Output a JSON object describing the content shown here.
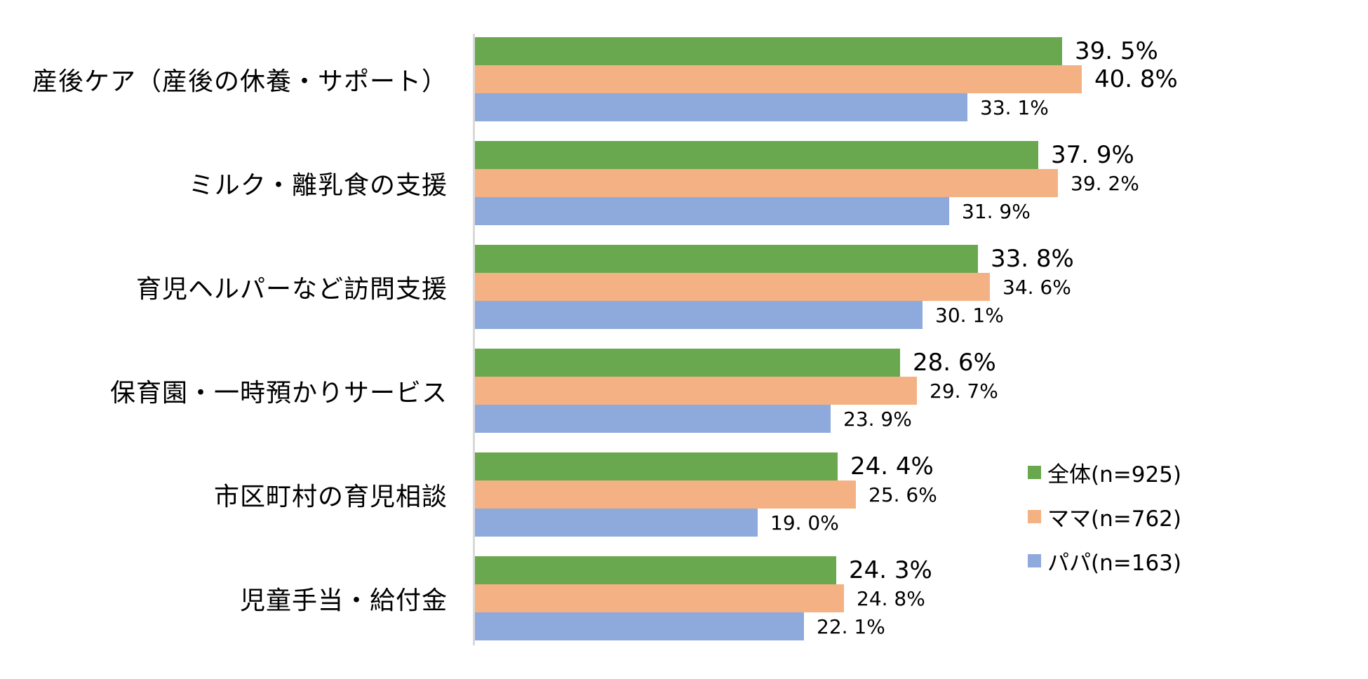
{
  "chart_data": {
    "type": "bar",
    "orientation": "horizontal",
    "title": "",
    "xlabel": "",
    "ylabel": "",
    "xlim": [
      0,
      60
    ],
    "grid": false,
    "legend_position": "right-lower",
    "categories": [
      "産後ケア（産後の休養・サポート）",
      "ミルク・離乳食の支援",
      "育児ヘルパーなど訪問支援",
      "保育園・一時預かりサービス",
      "市区町村の育児相談",
      "児童手当・給付金"
    ],
    "series": [
      {
        "name": "全体(n=925)",
        "color": "#6AA84F",
        "values": [
          39.5,
          37.9,
          33.8,
          28.6,
          24.4,
          24.3
        ]
      },
      {
        "name": "ママ(n=762)",
        "color": "#F4B183",
        "values": [
          40.8,
          39.2,
          34.6,
          29.7,
          25.6,
          24.8
        ]
      },
      {
        "name": "パパ(n=163)",
        "color": "#8EA9DB",
        "values": [
          33.1,
          31.9,
          30.1,
          23.9,
          19.0,
          22.1
        ]
      }
    ],
    "value_labels": [
      [
        "39. 5%",
        "40. 8%",
        "33. 1%"
      ],
      [
        "37. 9%",
        "39. 2%",
        "31. 9%"
      ],
      [
        "33. 8%",
        "34. 6%",
        "30. 1%"
      ],
      [
        "28. 6%",
        "29. 7%",
        "23. 9%"
      ],
      [
        "24. 4%",
        "25. 6%",
        "19. 0%"
      ],
      [
        "24. 3%",
        "24. 8%",
        "22. 1%"
      ]
    ],
    "label_emphasis": [
      [
        true,
        true,
        false
      ],
      [
        true,
        false,
        false
      ],
      [
        true,
        false,
        false
      ],
      [
        true,
        false,
        false
      ],
      [
        true,
        false,
        false
      ],
      [
        true,
        false,
        false
      ]
    ]
  },
  "legend": {
    "items": [
      {
        "label": "全体(n=925)",
        "color": "#6AA84F"
      },
      {
        "label": "ママ(n=762)",
        "color": "#F4B183"
      },
      {
        "label": "パパ(n=163)",
        "color": "#8EA9DB"
      }
    ]
  },
  "colors": {
    "axis_line": "#d9d9d9",
    "text": "#000000",
    "background": "#ffffff"
  }
}
